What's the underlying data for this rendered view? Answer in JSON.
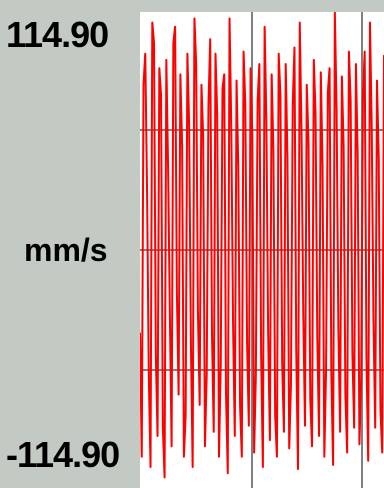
{
  "chart_data": {
    "type": "line",
    "title": "",
    "ylabel": "mm/s",
    "ytick_top": "114.90",
    "ytick_bottom": "-114.90",
    "ylim": [
      -114.9,
      114.9
    ],
    "grid": true,
    "series": [
      {
        "color": "#ff0000",
        "values": [
          -40,
          -100,
          80,
          95,
          30,
          -60,
          -105,
          110,
          100,
          -50,
          -90,
          88,
          75,
          -85,
          -110,
          92,
          40,
          -30,
          -95,
          100,
          108,
          -20,
          -70,
          85,
          50,
          -100,
          -80,
          95,
          60,
          -45,
          -105,
          112,
          90,
          -30,
          -75,
          80,
          55,
          -95,
          -60,
          70,
          102,
          -40,
          -88,
          95,
          65,
          -100,
          -55,
          78,
          85,
          -70,
          -108,
          112,
          60,
          -35,
          -90,
          82,
          40,
          -75,
          -100,
          96,
          70,
          -45,
          -85,
          88,
          55,
          -98,
          -60,
          72,
          90,
          -50,
          -105,
          108,
          62,
          -40,
          -92,
          85,
          48,
          -80,
          -100,
          95,
          75,
          -55,
          -88,
          90,
          45,
          -96,
          -65,
          70,
          98,
          -48,
          -106,
          110,
          58,
          -30,
          -85,
          80,
          52,
          -72,
          -95,
          92,
          66,
          -42,
          -90,
          86,
          40,
          -100,
          -58,
          76,
          88,
          -60,
          -104,
          114.9,
          68,
          -38,
          -88,
          84,
          50,
          -70,
          -98,
          96,
          72,
          -50,
          -86,
          90,
          46,
          -94,
          -62,
          74,
          96,
          -52,
          -102,
          110,
          60,
          -34,
          -86,
          82,
          44,
          -78,
          -98,
          94
        ]
      }
    ]
  }
}
